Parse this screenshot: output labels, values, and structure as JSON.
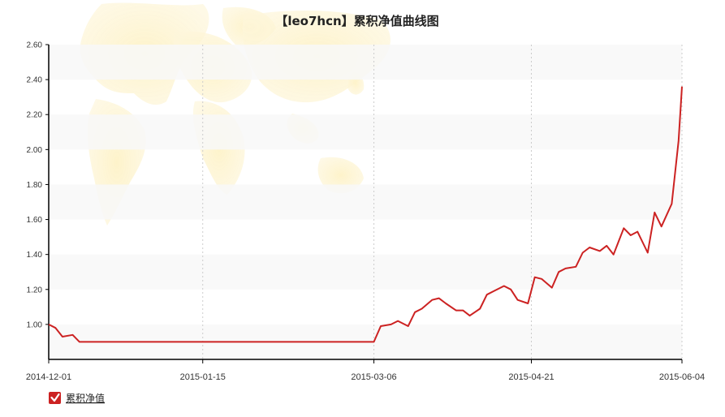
{
  "chart_data": {
    "type": "line",
    "title": "【leo7hcn】累积净值曲线图",
    "x_start": "2014-12-01",
    "x_end": "2015-06-04",
    "x_ticks": [
      "2014-12-01",
      "2015-01-15",
      "2015-03-06",
      "2015-04-21",
      "2015-06-04"
    ],
    "y_ticks": [
      "1.00",
      "1.20",
      "1.40",
      "1.60",
      "1.80",
      "2.00",
      "2.20",
      "2.40",
      "2.60"
    ],
    "ylim": [
      0.8,
      2.6
    ],
    "grid": "alternating horizontal bands, dotted vertical lines at x ticks",
    "legend": {
      "placement": "bottom-left",
      "checked": true
    },
    "colors": {
      "line": "#cc2222",
      "band": "#f8f8f8",
      "legend_box": "#cc2222"
    },
    "series": [
      {
        "name": "累积净值",
        "x": [
          "2014-12-01",
          "2014-12-03",
          "2014-12-05",
          "2014-12-08",
          "2014-12-10",
          "2014-12-15",
          "2015-01-01",
          "2015-02-01",
          "2015-03-06",
          "2015-03-08",
          "2015-03-11",
          "2015-03-13",
          "2015-03-16",
          "2015-03-18",
          "2015-03-20",
          "2015-03-23",
          "2015-03-25",
          "2015-03-27",
          "2015-03-30",
          "2015-04-01",
          "2015-04-03",
          "2015-04-06",
          "2015-04-08",
          "2015-04-10",
          "2015-04-13",
          "2015-04-15",
          "2015-04-17",
          "2015-04-20",
          "2015-04-22",
          "2015-04-24",
          "2015-04-27",
          "2015-04-29",
          "2015-05-01",
          "2015-05-04",
          "2015-05-06",
          "2015-05-08",
          "2015-05-11",
          "2015-05-13",
          "2015-05-15",
          "2015-05-18",
          "2015-05-20",
          "2015-05-22",
          "2015-05-25",
          "2015-05-27",
          "2015-05-29",
          "2015-06-01",
          "2015-06-03",
          "2015-06-04"
        ],
        "y": [
          1.0,
          0.98,
          0.93,
          0.94,
          0.9,
          0.9,
          0.9,
          0.9,
          0.9,
          0.99,
          1.0,
          1.02,
          0.99,
          1.07,
          1.09,
          1.14,
          1.15,
          1.12,
          1.08,
          1.08,
          1.05,
          1.09,
          1.17,
          1.19,
          1.22,
          1.2,
          1.14,
          1.12,
          1.27,
          1.26,
          1.21,
          1.3,
          1.32,
          1.33,
          1.41,
          1.44,
          1.42,
          1.45,
          1.4,
          1.55,
          1.51,
          1.53,
          1.41,
          1.64,
          1.56,
          1.69,
          2.05,
          2.36
        ]
      }
    ]
  }
}
